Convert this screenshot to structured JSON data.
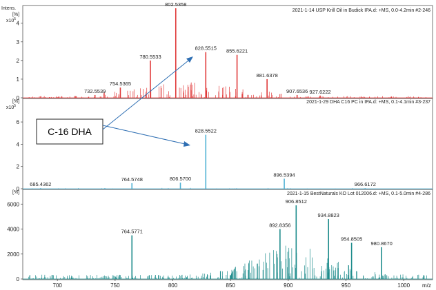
{
  "figure": {
    "y_quantity": "Intens.",
    "y_unit": "[%]",
    "x_unit": "m/z"
  },
  "callout": {
    "label": "C-16 DHA",
    "line_color": "#2f6fb3"
  },
  "colors": {
    "panel1": "#e03a3a",
    "panel2": "#4fb1d4",
    "panel3": "#1e8c8c"
  },
  "chart_data": [
    {
      "type": "bar",
      "header": "2021-1-14 USP Krill Oil in Budick IPA.d: +MS, 0.0-4.2min #2-246",
      "y_exponent_label": "x10",
      "y_exponent_power": "5",
      "yticks": [
        "0",
        "1",
        "2",
        "3",
        "4"
      ],
      "ylim": [
        0,
        4.8
      ],
      "xlim": [
        670,
        1025
      ],
      "peak_labels": [
        "732.5539",
        "754.5365",
        "780.5533",
        "802.5358",
        "828.5515",
        "855.6221",
        "881.6378",
        "907.6536",
        "927.6222"
      ],
      "peaks": [
        {
          "x": 732.55,
          "y": 0.15
        },
        {
          "x": 754.54,
          "y": 0.55
        },
        {
          "x": 780.55,
          "y": 2.0
        },
        {
          "x": 802.54,
          "y": 4.8
        },
        {
          "x": 828.55,
          "y": 2.45
        },
        {
          "x": 855.62,
          "y": 2.3
        },
        {
          "x": 881.64,
          "y": 1.0
        },
        {
          "x": 907.65,
          "y": 0.15
        },
        {
          "x": 927.62,
          "y": 0.12
        }
      ]
    },
    {
      "type": "bar",
      "header": "2021-1-29 DHA C16 PC in IPA.d: +MS, 0.1-4.1min #3-237",
      "y_exponent_label": "x10",
      "y_exponent_power": "5",
      "yticks": [
        "0",
        "2",
        "4",
        "6"
      ],
      "ylim": [
        0,
        7.8
      ],
      "xlim": [
        670,
        1025
      ],
      "peak_labels": [
        "685.4362",
        "764.5748",
        "806.5700",
        "828.5522",
        "896.5394",
        "966.6172"
      ],
      "peaks": [
        {
          "x": 685.44,
          "y": 0.05
        },
        {
          "x": 764.57,
          "y": 0.5
        },
        {
          "x": 806.57,
          "y": 0.55
        },
        {
          "x": 828.55,
          "y": 4.85
        },
        {
          "x": 896.54,
          "y": 0.9
        },
        {
          "x": 966.62,
          "y": 0.05
        }
      ]
    },
    {
      "type": "bar",
      "header": "2021-1-15 BestNaturals KO Lot 012006.d: +MS, 0.1-5.0min #4-286",
      "yticks": [
        "0",
        "2000",
        "4000",
        "6000"
      ],
      "ylim": [
        0,
        6900
      ],
      "xticks": [
        "700",
        "750",
        "800",
        "850",
        "900",
        "950",
        "1000"
      ],
      "xlim": [
        670,
        1025
      ],
      "peak_labels": [
        "764.5771",
        "892.8356",
        "906.8512",
        "934.8823",
        "954.8505",
        "980.8670"
      ],
      "peaks": [
        {
          "x": 764.58,
          "y": 3500
        },
        {
          "x": 892.84,
          "y": 4000
        },
        {
          "x": 906.85,
          "y": 5900
        },
        {
          "x": 934.88,
          "y": 4800
        },
        {
          "x": 954.85,
          "y": 2900
        },
        {
          "x": 980.87,
          "y": 2550
        }
      ]
    }
  ]
}
